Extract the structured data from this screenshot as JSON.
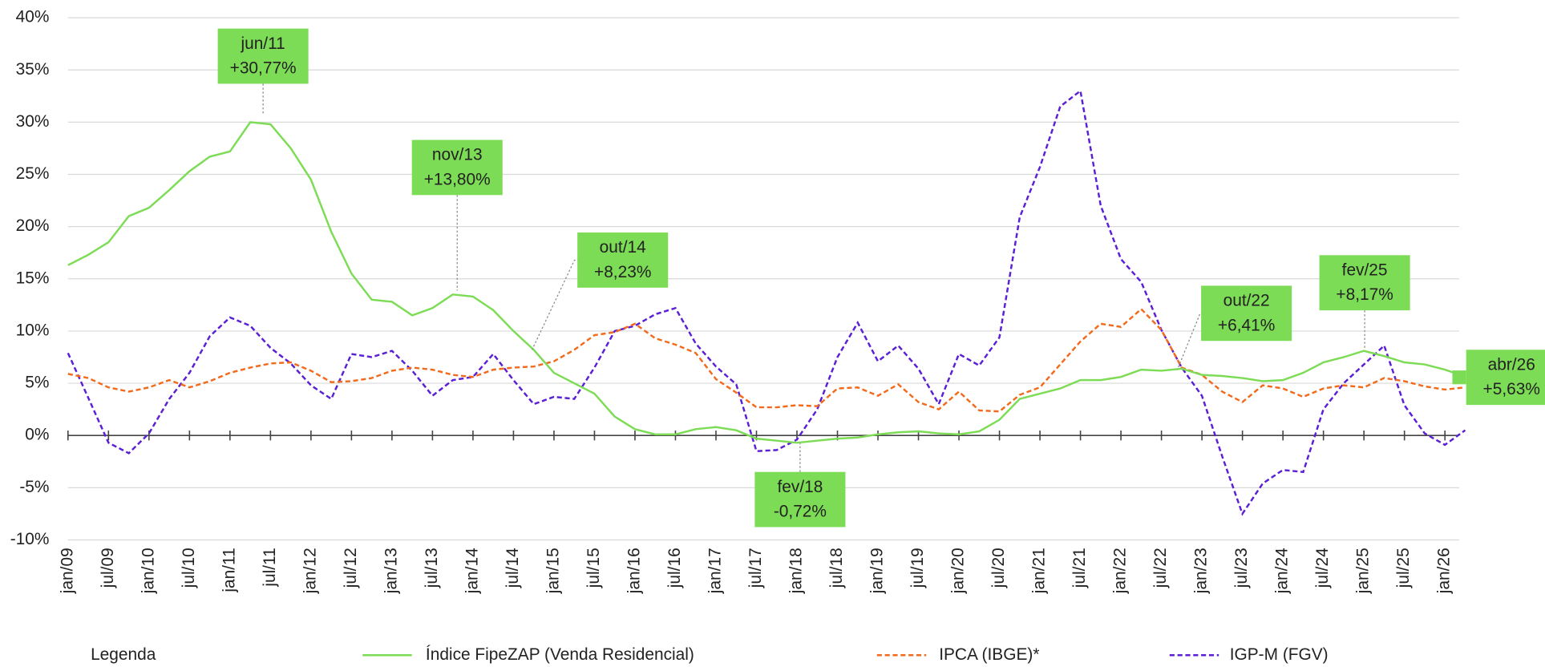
{
  "chart_data": {
    "type": "line",
    "categories": [
      "jan/09",
      null,
      "jul/09",
      null,
      "jan/10",
      null,
      "jul/10",
      null,
      "jan/11",
      null,
      "jul/11",
      null,
      "jan/12",
      null,
      "jul/12",
      null,
      "jan/13",
      null,
      "jul/13",
      null,
      "jan/14",
      null,
      "jul/14",
      null,
      "jan/15",
      null,
      "jul/15",
      null,
      "jan/16",
      null,
      "jul/16",
      null,
      "jan/17",
      null,
      "jul/17",
      null,
      "jan/18",
      null,
      "jul/18",
      null,
      "jan/19",
      null,
      "jul/19",
      null,
      "jan/20",
      null,
      "jul/20",
      null,
      "jan/21",
      null,
      "jul/21",
      null,
      "jan/22",
      null,
      "jul/22",
      null,
      "jan/23",
      null,
      "jul/23",
      null,
      "jan/24",
      null,
      "jul/24",
      null,
      "jan/25",
      null,
      "jul/25",
      null,
      "jan/26",
      null
    ],
    "series": [
      {
        "name": "Índice FipeZAP (Venda Residencial)",
        "color": "#7ddc55",
        "style": "solid",
        "values": [
          16.3,
          17.3,
          18.5,
          21,
          21.8,
          23.5,
          25.3,
          26.7,
          27.2,
          30.0,
          29.8,
          27.5,
          24.5,
          19.5,
          15.5,
          13,
          12.8,
          11.5,
          12.2,
          13.5,
          13.3,
          12,
          10,
          8.2,
          6,
          5,
          4,
          1.8,
          0.6,
          0.1,
          0.1,
          0.6,
          0.8,
          0.5,
          -0.3,
          -0.5,
          -0.7,
          -0.5,
          -0.3,
          -0.2,
          0.1,
          0.3,
          0.4,
          0.2,
          0.1,
          0.4,
          1.5,
          3.5,
          4.0,
          4.5,
          5.3,
          5.3,
          5.6,
          6.3,
          6.2,
          6.4,
          5.8,
          5.7,
          5.5,
          5.2,
          5.3,
          6.0,
          7.0,
          7.5,
          8.1,
          7.6,
          7.0,
          6.8,
          6.3,
          5.63
        ]
      },
      {
        "name": "IPCA (IBGE)*",
        "color": "#f26b1d",
        "style": "dashed",
        "values": [
          5.9,
          5.5,
          4.6,
          4.2,
          4.6,
          5.3,
          4.6,
          5.2,
          6.0,
          6.5,
          6.9,
          7.0,
          6.2,
          5.1,
          5.2,
          5.5,
          6.2,
          6.5,
          6.3,
          5.8,
          5.6,
          6.3,
          6.5,
          6.6,
          7.1,
          8.2,
          9.6,
          9.9,
          10.7,
          9.3,
          8.7,
          7.9,
          5.4,
          4.1,
          2.7,
          2.7,
          2.9,
          2.8,
          4.5,
          4.6,
          3.8,
          4.9,
          3.2,
          2.5,
          4.2,
          2.4,
          2.3,
          3.9,
          4.6,
          6.8,
          9.0,
          10.7,
          10.4,
          12.1,
          10.1,
          6.5,
          5.8,
          4.2,
          3.2,
          4.8,
          4.5,
          3.7,
          4.5,
          4.8,
          4.6,
          5.5,
          5.2,
          4.7,
          4.4,
          4.6
        ]
      },
      {
        "name": "IGP-M (FGV)",
        "color": "#5b1fd6",
        "style": "dashed",
        "values": [
          7.9,
          3.6,
          -0.7,
          -1.7,
          0.2,
          3.5,
          6.0,
          9.5,
          11.3,
          10.5,
          8.4,
          6.9,
          4.8,
          3.5,
          7.8,
          7.5,
          8.1,
          6.2,
          3.8,
          5.3,
          5.6,
          7.8,
          5.3,
          3.0,
          3.7,
          3.5,
          6.5,
          10.0,
          10.5,
          11.6,
          12.2,
          8.8,
          6.6,
          4.9,
          -1.5,
          -1.4,
          -0.4,
          2.5,
          7.5,
          10.8,
          7.1,
          8.6,
          6.4,
          3.0,
          7.8,
          6.7,
          9.4,
          20.9,
          25.7,
          31.5,
          33.0,
          22.0,
          16.9,
          14.7,
          10.1,
          6.5,
          3.8,
          -2.0,
          -7.5,
          -4.6,
          -3.3,
          -3.5,
          2.5,
          5.0,
          6.8,
          8.6,
          2.9,
          0.2,
          -0.9,
          0.5
        ]
      }
    ],
    "ylim": [
      -10,
      40
    ],
    "yticks": [
      {
        "value": -10,
        "label": "-10%"
      },
      {
        "value": -5,
        "label": "-5%"
      },
      {
        "value": 0,
        "label": "0%"
      },
      {
        "value": 5,
        "label": "5%"
      },
      {
        "value": 10,
        "label": "10%"
      },
      {
        "value": 15,
        "label": "15%"
      },
      {
        "value": 20,
        "label": "20%"
      },
      {
        "value": 25,
        "label": "25%"
      },
      {
        "value": 30,
        "label": "30%"
      },
      {
        "value": 35,
        "label": "35%"
      },
      {
        "value": 40,
        "label": "40%"
      }
    ],
    "grid": true,
    "legend_title": "Legenda",
    "annotations": [
      {
        "label": "jun/11",
        "value_label": "+30,77%"
      },
      {
        "label": "nov/13",
        "value_label": "+13,80%"
      },
      {
        "label": "out/14",
        "value_label": "+8,23%"
      },
      {
        "label": "fev/18",
        "value_label": "-0,72%"
      },
      {
        "label": "out/22",
        "value_label": "+6,41%"
      },
      {
        "label": "fev/25",
        "value_label": "+8,17%"
      },
      {
        "label": "abr/26",
        "value_label": "+5,63%"
      }
    ]
  }
}
